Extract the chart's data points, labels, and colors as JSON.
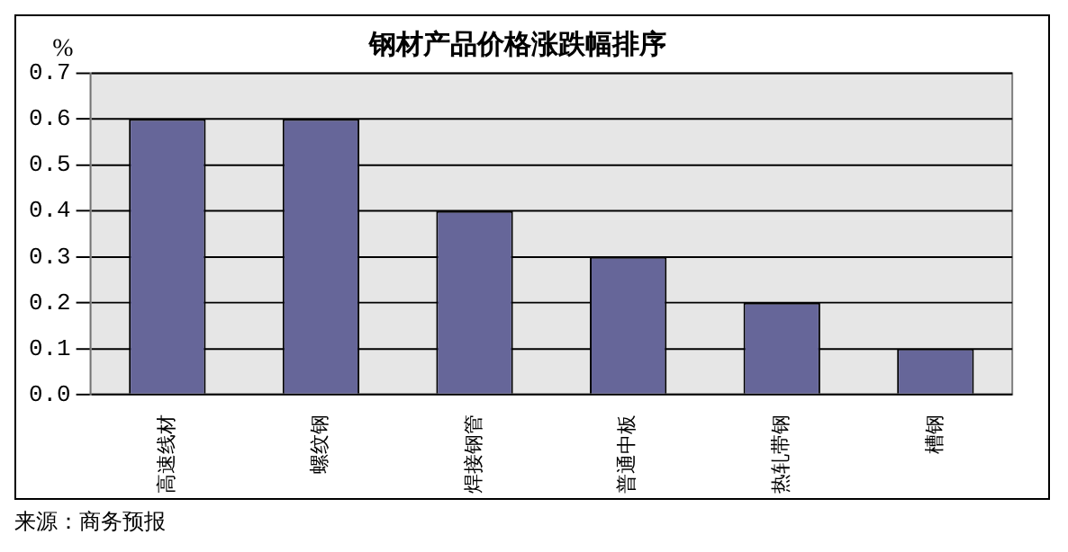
{
  "chart_data": {
    "type": "bar",
    "title": "钢材产品价格涨跌幅排序",
    "ylabel": "%",
    "categories": [
      "高速线材",
      "螺纹钢",
      "焊接钢管",
      "普通中板",
      "热轧带钢",
      "槽钢"
    ],
    "values": [
      0.6,
      0.6,
      0.4,
      0.3,
      0.2,
      0.1
    ],
    "color": "#666699",
    "ylim": [
      0,
      0.7
    ],
    "yticks": [
      {
        "value": 0,
        "label": "0.0"
      },
      {
        "value": 0.1,
        "label": "0.1"
      },
      {
        "value": 0.2,
        "label": "0.2"
      },
      {
        "value": 0.3,
        "label": "0.3"
      },
      {
        "value": 0.4,
        "label": "0.4"
      },
      {
        "value": 0.5,
        "label": "0.5"
      },
      {
        "value": 0.6,
        "label": "0.6"
      },
      {
        "value": 0.7,
        "label": "0.7"
      }
    ],
    "grid": "y",
    "legend": false,
    "annotations": [
      "来源：商务预报"
    ]
  }
}
